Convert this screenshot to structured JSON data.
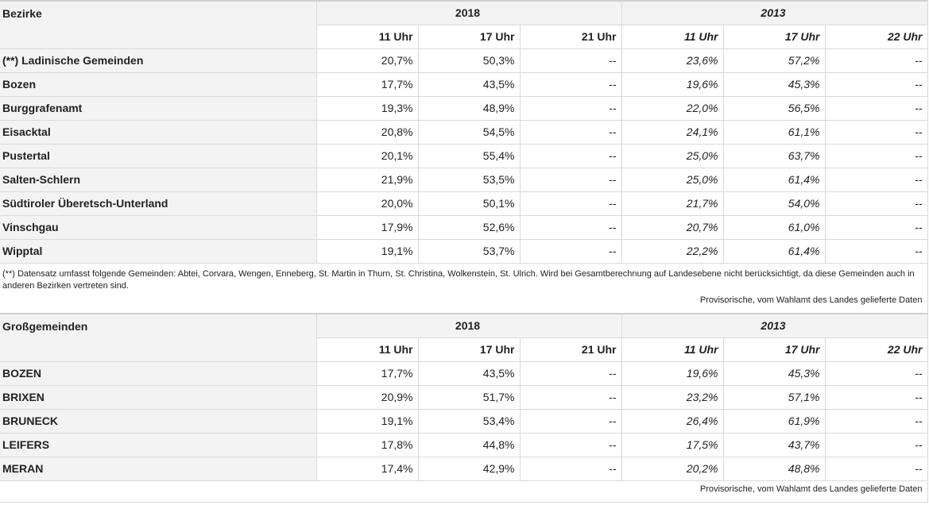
{
  "bezirke": {
    "header_label": "Bezirke",
    "year_a": "2018",
    "year_b": "2013",
    "hours_a": [
      "11 Uhr",
      "17 Uhr",
      "21 Uhr"
    ],
    "hours_b": [
      "11 Uhr",
      "17 Uhr",
      "22 Uhr"
    ],
    "rows": [
      {
        "name": "(**) Ladinische Gemeinden",
        "v": [
          "20,7%",
          "50,3%",
          "--",
          "23,6%",
          "57,2%",
          "--"
        ]
      },
      {
        "name": "Bozen",
        "v": [
          "17,7%",
          "43,5%",
          "--",
          "19,6%",
          "45,3%",
          "--"
        ]
      },
      {
        "name": "Burggrafenamt",
        "v": [
          "19,3%",
          "48,9%",
          "--",
          "22,0%",
          "56,5%",
          "--"
        ]
      },
      {
        "name": "Eisacktal",
        "v": [
          "20,8%",
          "54,5%",
          "--",
          "24,1%",
          "61,1%",
          "--"
        ]
      },
      {
        "name": "Pustertal",
        "v": [
          "20,1%",
          "55,4%",
          "--",
          "25,0%",
          "63,7%",
          "--"
        ]
      },
      {
        "name": "Salten-Schlern",
        "v": [
          "21,9%",
          "53,5%",
          "--",
          "25,0%",
          "61,4%",
          "--"
        ]
      },
      {
        "name": "Südtiroler Überetsch-Unterland",
        "v": [
          "20,0%",
          "50,1%",
          "--",
          "21,7%",
          "54,0%",
          "--"
        ]
      },
      {
        "name": "Vinschgau",
        "v": [
          "17,9%",
          "52,6%",
          "--",
          "20,7%",
          "61,0%",
          "--"
        ]
      },
      {
        "name": "Wipptal",
        "v": [
          "19,1%",
          "53,7%",
          "--",
          "22,2%",
          "61,4%",
          "--"
        ]
      }
    ],
    "note": "(**) Datensatz umfasst folgende Gemeinden: Abtei, Corvara, Wengen, Enneberg, St. Martin in Thurn, St. Christina, Wolkenstein, St. Ulrich. Wird bei Gesamtberechnung auf Landesebene nicht berücksichtigt, da diese Gemeinden auch in anderen Bezirken vertreten sind.",
    "source": "Provisorische, vom Wahlamt des Landes gelieferte Daten"
  },
  "gemeinden": {
    "header_label": "Großgemeinden",
    "year_a": "2018",
    "year_b": "2013",
    "hours_a": [
      "11 Uhr",
      "17 Uhr",
      "21 Uhr"
    ],
    "hours_b": [
      "11 Uhr",
      "17 Uhr",
      "22 Uhr"
    ],
    "rows": [
      {
        "name": "BOZEN",
        "v": [
          "17,7%",
          "43,5%",
          "--",
          "19,6%",
          "45,3%",
          "--"
        ]
      },
      {
        "name": "BRIXEN",
        "v": [
          "20,9%",
          "51,7%",
          "--",
          "23,2%",
          "57,1%",
          "--"
        ]
      },
      {
        "name": "BRUNECK",
        "v": [
          "19,1%",
          "53,4%",
          "--",
          "26,4%",
          "61,9%",
          "--"
        ]
      },
      {
        "name": "LEIFERS",
        "v": [
          "17,8%",
          "44,8%",
          "--",
          "17,5%",
          "43,7%",
          "--"
        ]
      },
      {
        "name": "MERAN",
        "v": [
          "17,4%",
          "42,9%",
          "--",
          "20,2%",
          "48,8%",
          "--"
        ]
      }
    ],
    "source": "Provisorische, vom Wahlamt des Landes gelieferte Daten"
  }
}
